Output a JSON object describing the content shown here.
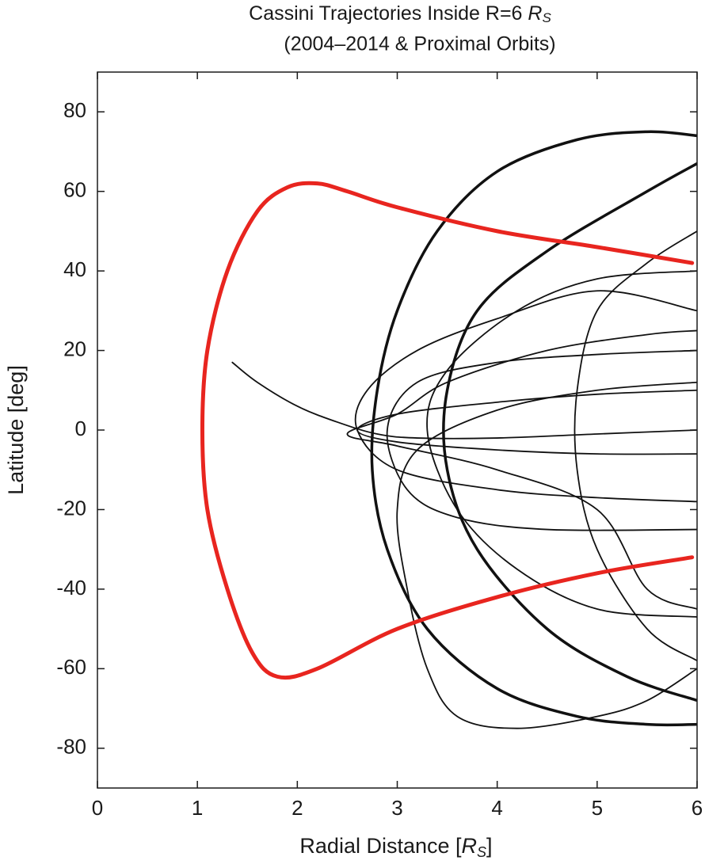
{
  "chart_data": {
    "type": "line",
    "title": {
      "text": "Cassini Trajectories Inside R=6",
      "unit": "R",
      "unit_sub": "S"
    },
    "subtitle": "(2004–2014 & Proximal Orbits)",
    "x_label": {
      "text": "Radial Distance [",
      "unit": "R",
      "unit_sub": "S",
      "close": "]"
    },
    "y_label": "Latitude [deg]",
    "xlim": [
      0,
      6
    ],
    "ylim": [
      -90,
      90
    ],
    "xticks": [
      0,
      1,
      2,
      3,
      4,
      5,
      6
    ],
    "yticks": [
      -80,
      -60,
      -40,
      -20,
      0,
      20,
      40,
      60,
      80
    ],
    "grid": false,
    "series": [
      {
        "color": "#111111",
        "line_width": 1.8,
        "x": [
          1.35,
          1.6,
          2.0,
          2.4,
          2.8,
          3.2,
          4.0,
          5.0,
          6.0
        ],
        "values": [
          17,
          12,
          6,
          2,
          -1,
          -2,
          -2,
          -1,
          0
        ]
      },
      {
        "color": "#111111",
        "line_width": 1.8,
        "x": [
          6.0,
          5.0,
          4.0,
          3.0,
          2.6,
          3.0,
          4.0,
          5.0,
          6.0
        ],
        "values": [
          10,
          9,
          7,
          4,
          0,
          -3,
          -5,
          -6,
          -6
        ]
      },
      {
        "color": "#111111",
        "line_width": 1.8,
        "x": [
          6.0,
          5.0,
          4.0,
          3.2,
          2.9,
          3.1,
          3.6,
          4.5,
          6.0
        ],
        "values": [
          20,
          19,
          17,
          12,
          0,
          -15,
          -22,
          -25,
          -25
        ]
      },
      {
        "color": "#111111",
        "line_width": 1.8,
        "x": [
          6.0,
          5.0,
          4.2,
          3.5,
          3.3,
          3.6,
          4.2,
          5.0,
          6.0
        ],
        "values": [
          40,
          38,
          30,
          15,
          0,
          -20,
          -35,
          -45,
          -47
        ]
      },
      {
        "color": "#111111",
        "line_width": 1.8,
        "x": [
          6.0,
          5.5,
          5.0,
          4.2,
          3.6,
          3.3,
          3.1,
          3.0,
          3.2,
          4.0,
          5.0,
          6.0
        ],
        "values": [
          -60,
          -68,
          -72,
          -75,
          -72,
          -60,
          -40,
          -20,
          -5,
          5,
          10,
          12
        ]
      },
      {
        "color": "#111111",
        "line_width": 1.8,
        "x": [
          6.0,
          5.0,
          4.0,
          3.2,
          2.7,
          2.6,
          3.0,
          4.0,
          5.0,
          6.0
        ],
        "values": [
          30,
          35,
          28,
          20,
          10,
          0,
          -10,
          -15,
          -17,
          -18
        ]
      },
      {
        "color": "#111111",
        "line_width": 1.8,
        "x": [
          6.0,
          5.5,
          5.0,
          4.8,
          4.8,
          5.0,
          5.5,
          6.0
        ],
        "values": [
          50,
          42,
          30,
          10,
          -10,
          -30,
          -50,
          -58
        ]
      },
      {
        "color": "#111111",
        "line_width": 1.8,
        "x": [
          6.0,
          5.5,
          4.5,
          3.5,
          3.0,
          2.5,
          3.0,
          4.0,
          5.0,
          5.5,
          6.0
        ],
        "values": [
          25,
          24,
          20,
          12,
          4,
          -1,
          -4,
          -10,
          -20,
          -40,
          -45
        ]
      },
      {
        "color": "#111111",
        "line_width": 3.5,
        "x": [
          6.0,
          5.5,
          4.5,
          3.8,
          3.5,
          3.5,
          3.8,
          4.5,
          5.3,
          6.0
        ],
        "values": [
          67,
          60,
          45,
          30,
          10,
          -10,
          -30,
          -50,
          -62,
          -68
        ]
      },
      {
        "color": "#111111",
        "line_width": 3.5,
        "x": [
          6.0,
          5.5,
          4.8,
          4.0,
          3.4,
          3.0,
          2.8,
          2.75,
          2.9,
          3.3,
          4.0,
          4.8,
          5.5,
          6.0
        ],
        "values": [
          74,
          75,
          73,
          65,
          50,
          30,
          10,
          -10,
          -30,
          -50,
          -65,
          -72,
          -74,
          -74
        ]
      },
      {
        "color": "#e8251f",
        "line_width": 5,
        "x": [
          5.95,
          5.0,
          4.0,
          3.0,
          2.5,
          2.2,
          1.9,
          1.6,
          1.3,
          1.1,
          1.05,
          1.1,
          1.3,
          1.55,
          1.8,
          2.2,
          3.0,
          4.0,
          5.0,
          5.95
        ],
        "values": [
          42,
          46,
          50,
          56,
          60,
          62,
          61,
          55,
          40,
          20,
          0,
          -20,
          -40,
          -56,
          -62,
          -60,
          -50,
          -42,
          -36,
          -32
        ]
      }
    ]
  }
}
